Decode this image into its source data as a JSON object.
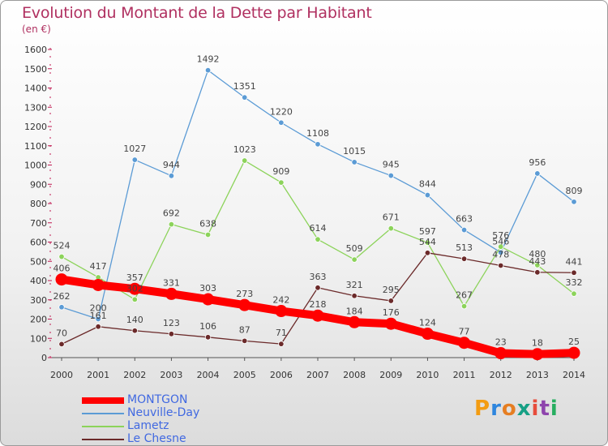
{
  "header": {
    "title": "Evolution du Montant de la Dette par Habitant",
    "unit": "(en €)"
  },
  "brand": {
    "letters": [
      "P",
      "r",
      "o",
      "x",
      "i",
      "t",
      "i"
    ],
    "colors": [
      "#f39c12",
      "#2e86de",
      "#e67e22",
      "#16a085",
      "#e74c3c",
      "#8e44ad",
      "#27ae60"
    ]
  },
  "chart_data": {
    "type": "line",
    "x": [
      2000,
      2001,
      2002,
      2003,
      2004,
      2005,
      2006,
      2007,
      2008,
      2009,
      2010,
      2011,
      2012,
      2013,
      2014
    ],
    "x_tick_labels": [
      "2000",
      "2001",
      "2002",
      "2003",
      "2004",
      "2005",
      "2006",
      "2007",
      "2008",
      "2009",
      "2010",
      "2011",
      "2012",
      "2013",
      "2014"
    ],
    "ylim": [
      0,
      1600
    ],
    "y_ticks": [
      0,
      100,
      200,
      300,
      400,
      500,
      600,
      700,
      800,
      900,
      1000,
      1100,
      1200,
      1300,
      1400,
      1500,
      1600
    ],
    "grid": false,
    "legend_position": "bottom-left",
    "series": [
      {
        "name": "MONTGON",
        "color": "#ff0000",
        "values": [
          406,
          377,
          357,
          331,
          303,
          273,
          242,
          218,
          184,
          176,
          124,
          77,
          23,
          18,
          25
        ],
        "labels": [
          "406",
          "",
          "357",
          "331",
          "303",
          "273",
          "242",
          "218",
          "184",
          "176",
          "124",
          "77",
          "23",
          "18",
          "25"
        ]
      },
      {
        "name": "Neuville-Day",
        "color": "#5b9bd5",
        "values": [
          262,
          200,
          1027,
          944,
          1492,
          1351,
          1220,
          1108,
          1015,
          945,
          844,
          663,
          546,
          956,
          809
        ],
        "labels": [
          "262",
          "200",
          "1027",
          "944",
          "1492",
          "1351",
          "1220",
          "1108",
          "1015",
          "945",
          "844",
          "663",
          "546",
          "956",
          "809"
        ]
      },
      {
        "name": "Lametz",
        "color": "#8cd35a",
        "values": [
          524,
          417,
          302,
          692,
          638,
          1023,
          909,
          614,
          509,
          671,
          597,
          267,
          576,
          480,
          332
        ],
        "labels": [
          "524",
          "417",
          "302",
          "692",
          "638",
          "1023",
          "909",
          "614",
          "509",
          "671",
          "597",
          "267",
          "576",
          "480",
          "332"
        ]
      },
      {
        "name": "Le Chesne",
        "color": "#6b2a2a",
        "values": [
          70,
          161,
          140,
          123,
          106,
          87,
          71,
          363,
          321,
          295,
          544,
          513,
          478,
          443,
          441
        ],
        "labels": [
          "70",
          "161",
          "140",
          "123",
          "106",
          "87",
          "71",
          "363",
          "321",
          "295",
          "544",
          "513",
          "478",
          "443",
          "441"
        ]
      }
    ]
  }
}
